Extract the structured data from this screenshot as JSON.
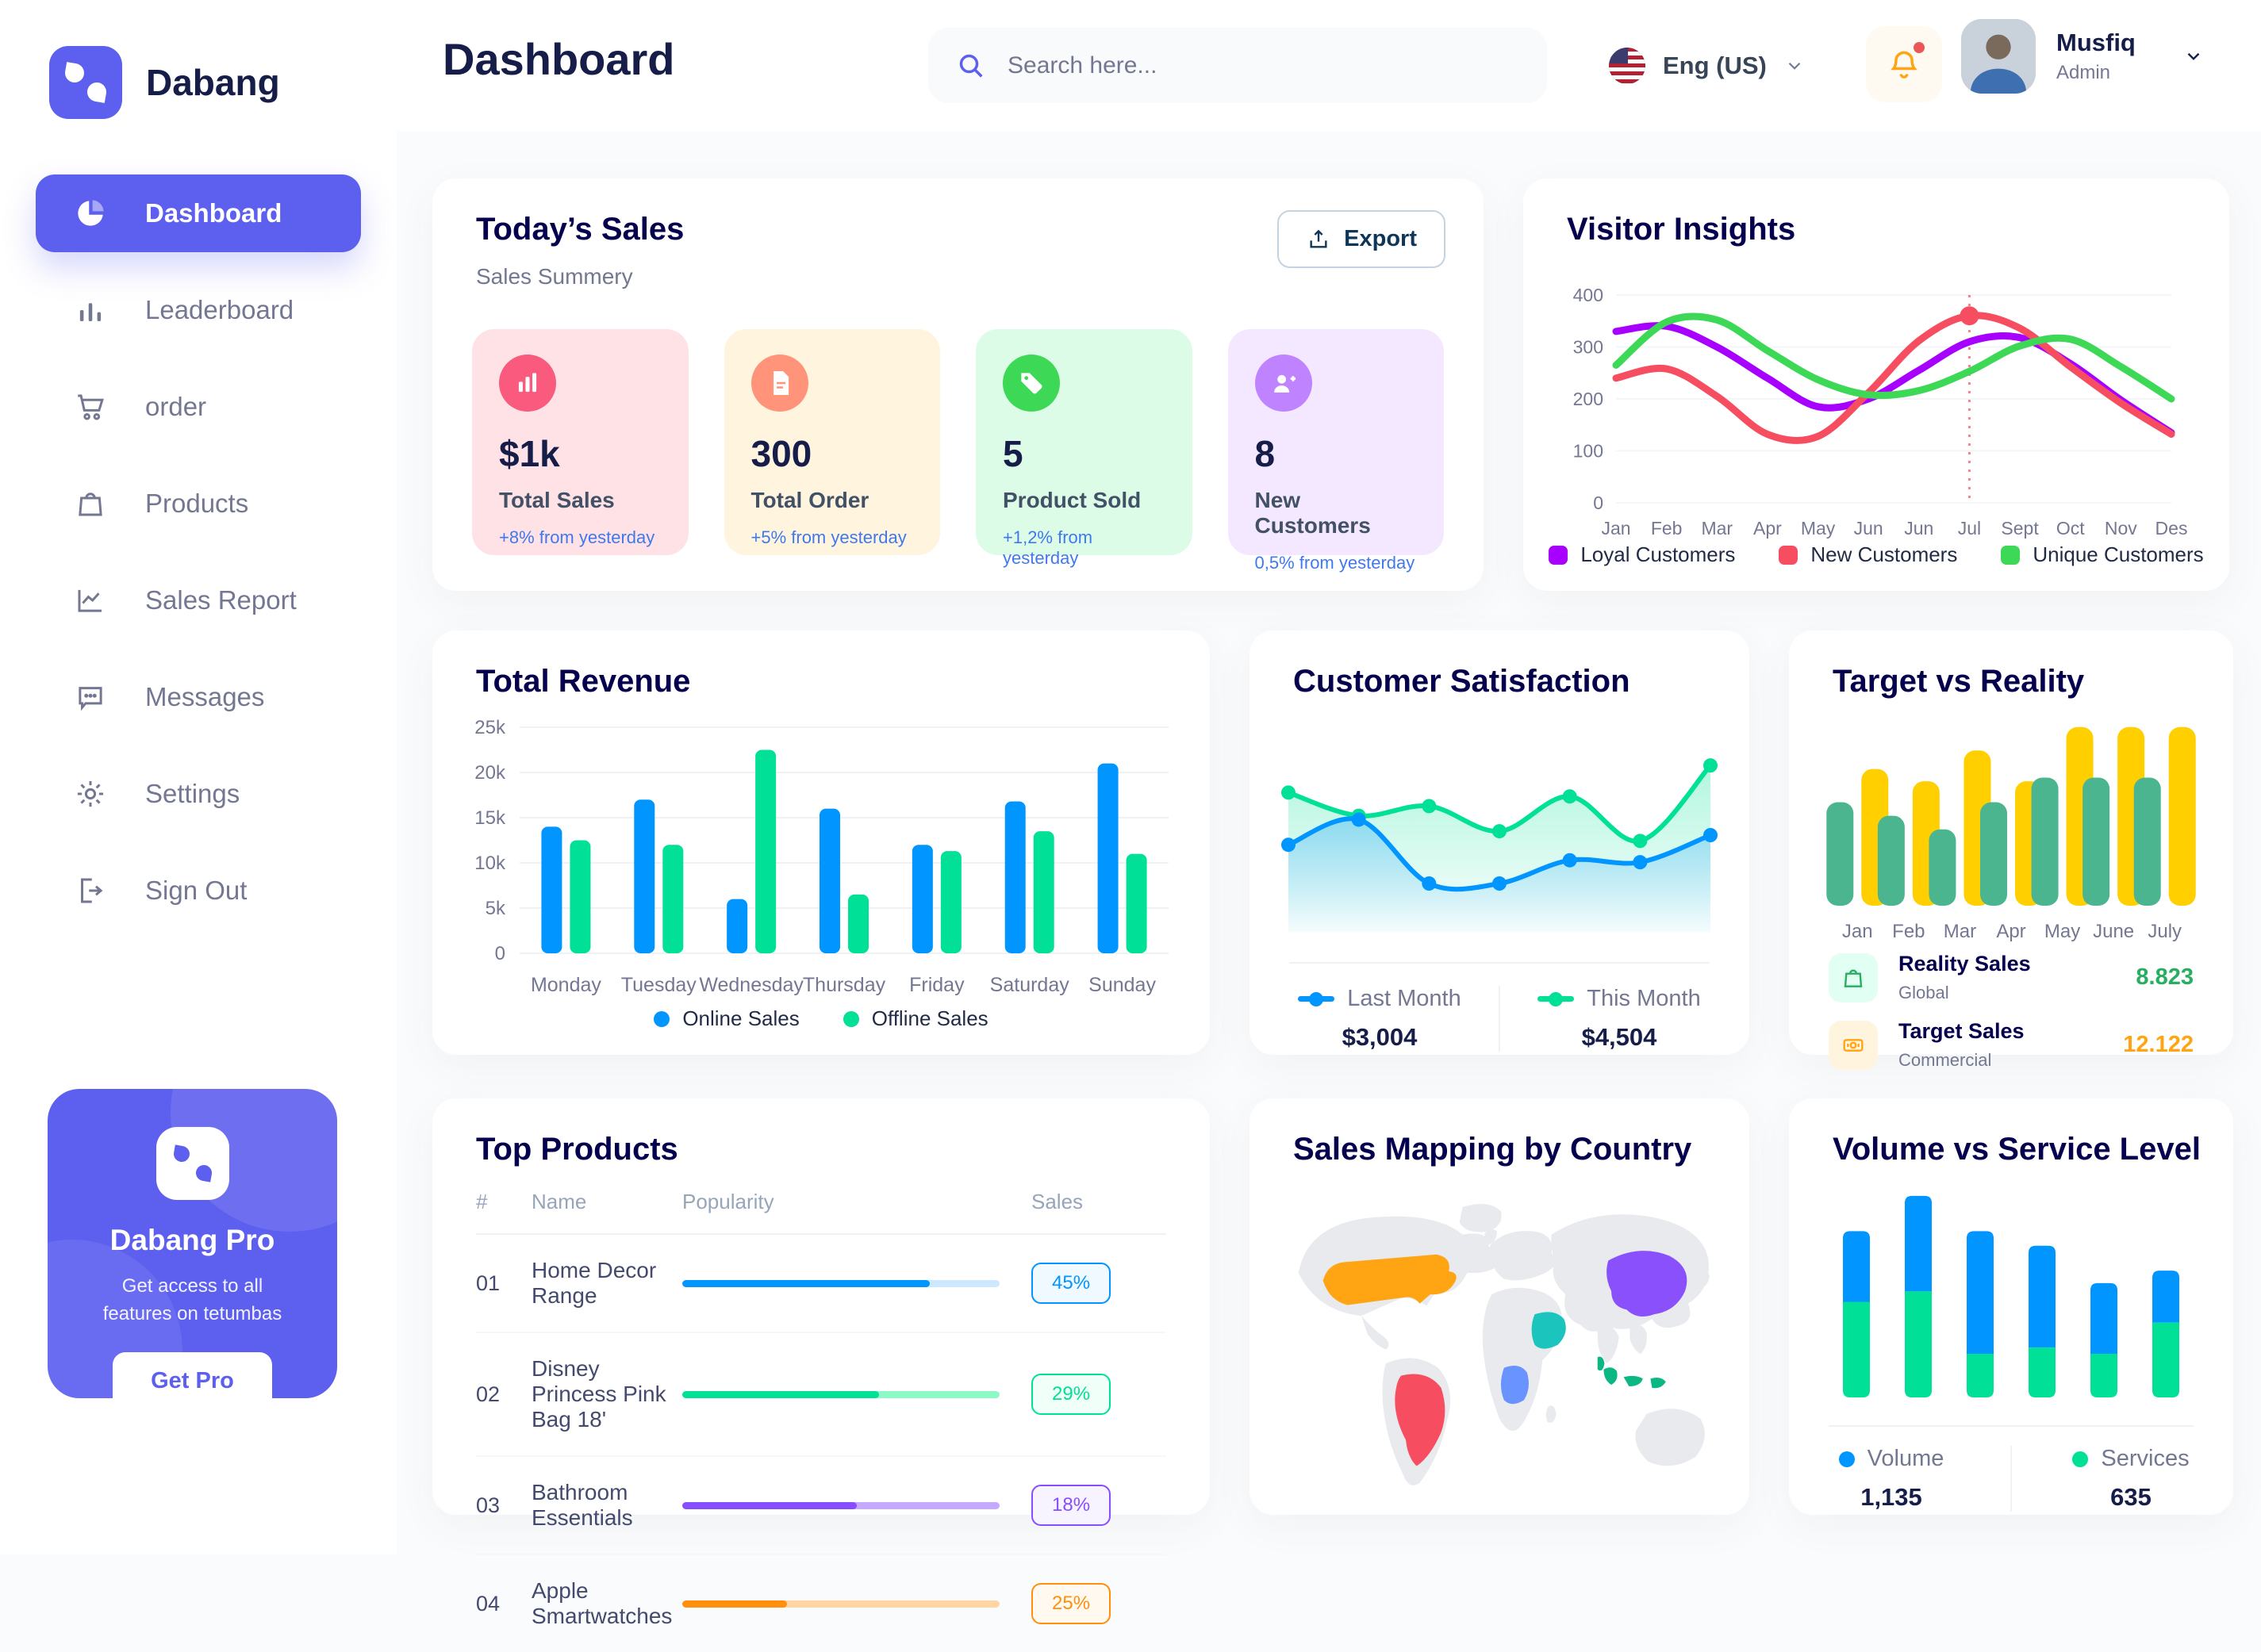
{
  "app": {
    "brand": "Dabang"
  },
  "header": {
    "title": "Dashboard",
    "search_placeholder": "Search here...",
    "language": "Eng (US)",
    "user": {
      "name": "Musfiq",
      "role": "Admin"
    }
  },
  "sidebar": {
    "items": [
      {
        "label": "Dashboard"
      },
      {
        "label": "Leaderboard"
      },
      {
        "label": "order"
      },
      {
        "label": "Products"
      },
      {
        "label": "Sales Report"
      },
      {
        "label": "Messages"
      },
      {
        "label": "Settings"
      },
      {
        "label": "Sign Out"
      }
    ],
    "promo": {
      "title": "Dabang Pro",
      "line1": "Get access to all",
      "line2": "features on tetumbas",
      "button": "Get Pro"
    }
  },
  "todays_sales": {
    "title": "Today’s Sales",
    "subtitle": "Sales Summery",
    "export_label": "Export",
    "stats": [
      {
        "value": "$1k",
        "label": "Total Sales",
        "note": "+8% from yesterday",
        "bg": "#FFE2E5",
        "icon_bg": "#FA5A7D",
        "icon": "bar-chart-icon"
      },
      {
        "value": "300",
        "label": "Total Order",
        "note": "+5% from yesterday",
        "bg": "#FFF4DE",
        "icon_bg": "#FF947A",
        "icon": "order-file-icon"
      },
      {
        "value": "5",
        "label": "Product Sold",
        "note": "+1,2% from yesterday",
        "bg": "#DCFCE7",
        "icon_bg": "#3CD856",
        "icon": "tag-icon"
      },
      {
        "value": "8",
        "label": "New Customers",
        "note": "0,5% from yesterday",
        "bg": "#F3E8FF",
        "icon_bg": "#BF83FF",
        "icon": "user-plus-icon"
      }
    ]
  },
  "chart_data": [
    {
      "id": "visitor_insights",
      "type": "line",
      "title": "Visitor Insights",
      "x_labels": [
        "Jan",
        "Feb",
        "Mar",
        "Apr",
        "May",
        "Jun",
        "Jun",
        "Jul",
        "Sept",
        "Oct",
        "Nov",
        "Des"
      ],
      "y_ticks": [
        0,
        100,
        200,
        300,
        400
      ],
      "ylim": [
        0,
        400
      ],
      "grid": true,
      "legend_position": "bottom",
      "series": [
        {
          "name": "Loyal Customers",
          "color": "#A700FF",
          "values": [
            330,
            340,
            300,
            240,
            185,
            200,
            255,
            310,
            318,
            268,
            198,
            135
          ]
        },
        {
          "name": "New Customers",
          "color": "#F64E60",
          "values": [
            240,
            258,
            205,
            132,
            128,
            212,
            312,
            360,
            336,
            262,
            192,
            132
          ]
        },
        {
          "name": "Unique Customers",
          "color": "#3CD856",
          "values": [
            265,
            348,
            352,
            293,
            237,
            208,
            216,
            253,
            302,
            315,
            262,
            200
          ]
        }
      ],
      "marker": {
        "series": 1,
        "index": 7,
        "value": 360
      }
    },
    {
      "id": "total_revenue",
      "type": "bar",
      "title": "Total Revenue",
      "categories": [
        "Monday",
        "Tuesday",
        "Wednesday",
        "Thursday",
        "Friday",
        "Saturday",
        "Sunday"
      ],
      "y_tick_labels": [
        "0",
        "5k",
        "10k",
        "15k",
        "20k",
        "25k"
      ],
      "ylim": [
        0,
        25000
      ],
      "grid": true,
      "legend_position": "bottom",
      "series": [
        {
          "name": "Online Sales",
          "color": "#0095FF",
          "values": [
            14000,
            17000,
            6000,
            16000,
            12000,
            16800,
            21000
          ]
        },
        {
          "name": "Offline Sales",
          "color": "#00E096",
          "values": [
            12500,
            12000,
            22500,
            6500,
            11300,
            13500,
            11000
          ]
        }
      ]
    },
    {
      "id": "customer_satisfaction",
      "type": "area",
      "title": "Customer Satisfaction",
      "ylim": [
        0,
        100
      ],
      "series": [
        {
          "name": "Last Month",
          "color": "#0095FF",
          "total": "$3,004",
          "values": [
            45,
            58,
            25,
            25,
            37,
            36,
            50
          ]
        },
        {
          "name": "This Month",
          "color": "#00E096",
          "total": "$4,504",
          "values": [
            72,
            60,
            65,
            52,
            70,
            47,
            86
          ]
        }
      ]
    },
    {
      "id": "target_vs_reality",
      "type": "bar",
      "title": "Target vs Reality",
      "categories": [
        "Jan",
        "Feb",
        "Mar",
        "Apr",
        "May",
        "June",
        "July"
      ],
      "ylim": [
        0,
        15
      ],
      "series": [
        {
          "name": "Reality Sales",
          "color": "#4AB58E",
          "values": [
            8.4,
            7.3,
            6.2,
            8.4,
            10.4,
            10.4,
            10.4
          ]
        },
        {
          "name": "Target Sales",
          "color": "#FFCF00",
          "values": [
            11.1,
            10.1,
            12.6,
            10.1,
            14.5,
            14.5,
            14.5
          ]
        }
      ],
      "legend": [
        {
          "name": "Reality Sales",
          "sub": "Global",
          "value": "8.823",
          "value_color": "#27AE60",
          "icon_bg": "#E2FFF3",
          "icon_color": "#27AE60"
        },
        {
          "name": "Target Sales",
          "sub": "Commercial",
          "value": "12.122",
          "value_color": "#FFA412",
          "icon_bg": "#FFF4DE",
          "icon_color": "#FFA412"
        }
      ]
    },
    {
      "id": "volume_vs_service",
      "type": "bar",
      "title": "Volume vs Service Level",
      "stacked": true,
      "ylim": [
        0,
        100
      ],
      "series": [
        {
          "name": "Volume",
          "color": "#0095FF",
          "total": "1,135",
          "values": [
            34,
            46,
            59,
            49,
            34,
            25
          ]
        },
        {
          "name": "Services",
          "color": "#00E096",
          "total": "635",
          "values": [
            46,
            51,
            21,
            24,
            21,
            36
          ]
        }
      ]
    }
  ],
  "top_products": {
    "title": "Top Products",
    "headers": {
      "num": "#",
      "name": "Name",
      "popularity": "Popularity",
      "sales": "Sales"
    },
    "rows": [
      {
        "num": "01",
        "name": "Home Decor Range",
        "sales": "45%",
        "fill": "78%",
        "color": "#0095FF",
        "track": "#CDE7FF",
        "badge_bg": "#F0F9FF"
      },
      {
        "num": "02",
        "name": "Disney Princess Pink Bag 18'",
        "sales": "29%",
        "fill": "62%",
        "color": "#00E096",
        "track": "#8CFAC7",
        "badge_bg": "#F0FFF8"
      },
      {
        "num": "03",
        "name": "Bathroom Essentials",
        "sales": "18%",
        "fill": "55%",
        "color": "#884DFF",
        "track": "#C5A8FF",
        "badge_bg": "#F8F4FF"
      },
      {
        "num": "04",
        "name": "Apple Smartwatches",
        "sales": "25%",
        "fill": "33%",
        "color": "#FF8F0D",
        "track": "#FFD5A4",
        "badge_bg": "#FFF9F0"
      }
    ]
  },
  "sales_map": {
    "title": "Sales Mapping by Country",
    "countries": [
      {
        "name": "United States",
        "color": "#FFA412"
      },
      {
        "name": "Brazil",
        "color": "#F64E60"
      },
      {
        "name": "China",
        "color": "#8950FC"
      },
      {
        "name": "Saudi Arabia",
        "color": "#1BC5BD"
      },
      {
        "name": "DR Congo",
        "color": "#6993FF"
      },
      {
        "name": "Indonesia",
        "color": "#0BB783"
      }
    ]
  },
  "colors": {
    "primary": "#5D5FEF",
    "card_title": "#05004E",
    "heading": "#151D48",
    "muted": "#737791",
    "note_blue": "#4079ED"
  }
}
